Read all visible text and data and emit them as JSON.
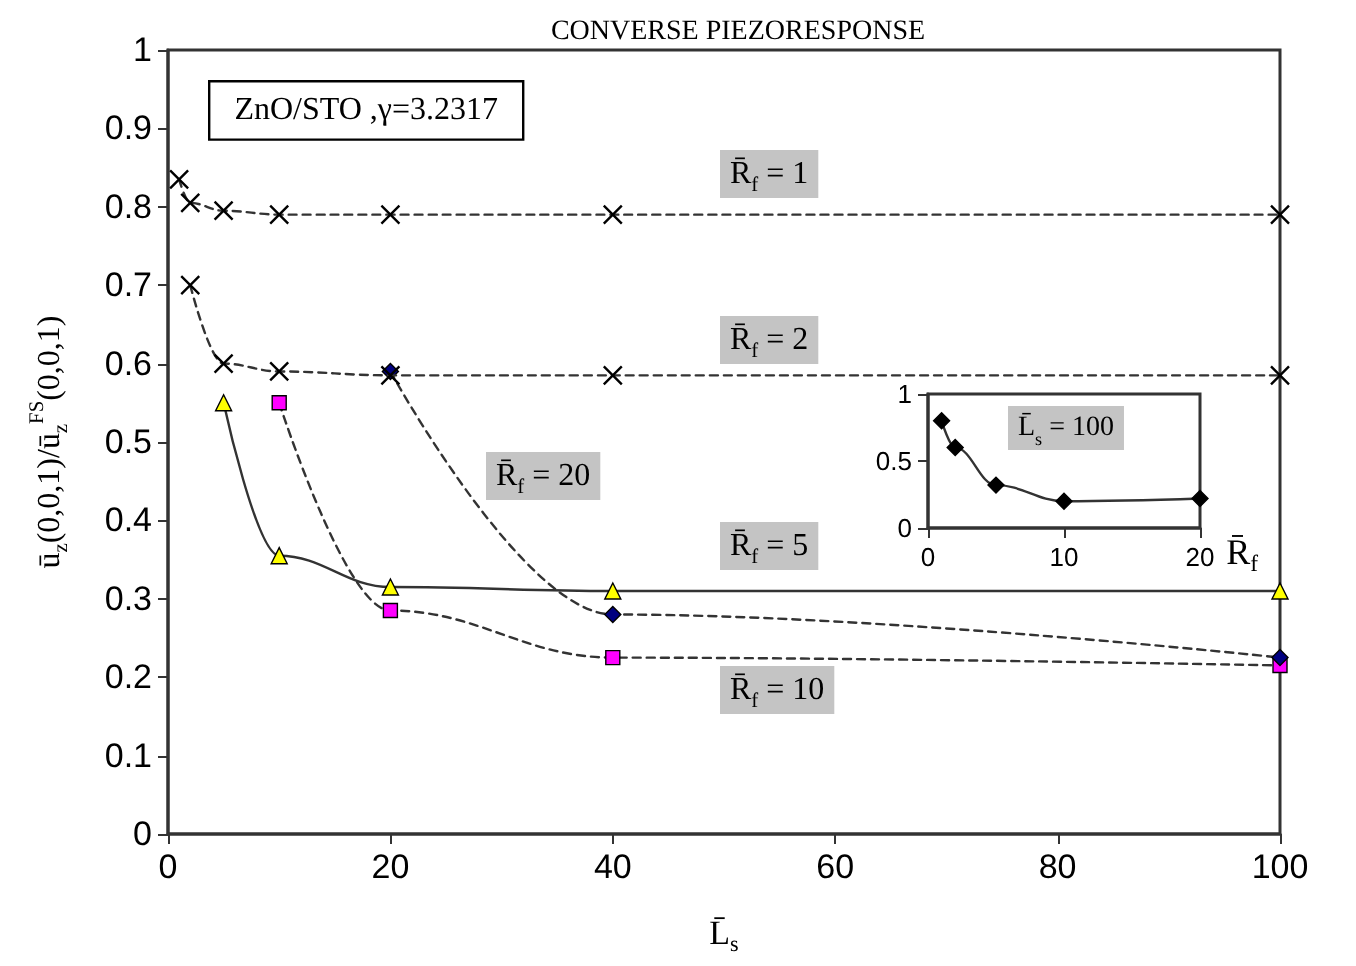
{
  "chart_data": [
    {
      "type": "line",
      "title": "CONVERSE PIEZORESPONSE",
      "xlabel": "L̄$_{s}$",
      "ylabel": "ū$_{z}$(0,0,1)/ū$_{z}$$^{FS}$(0,0,1)",
      "annotations": [
        "ZnO/STO ,γ=3.2317"
      ],
      "xlim": [
        0,
        100
      ],
      "xticks": [
        0,
        20,
        40,
        60,
        80,
        100
      ],
      "ylim": [
        0,
        1
      ],
      "yticks": [
        0,
        0.1,
        0.2,
        0.3,
        0.4,
        0.5,
        0.6,
        0.7,
        0.8,
        0.9,
        1
      ],
      "grid": false,
      "legend": false,
      "series": [
        {
          "name": "R̄$_{f}$ = 1",
          "color": "#000000",
          "marker": "cross",
          "line_style": "dashed",
          "x": [
            1,
            2,
            5,
            10,
            20,
            40,
            100
          ],
          "values": [
            0.835,
            0.805,
            0.795,
            0.79,
            0.79,
            0.79,
            0.79
          ]
        },
        {
          "name": "R̄$_{f}$ = 2",
          "color": "#000000",
          "marker": "cross",
          "line_style": "dashed",
          "x": [
            2,
            5,
            10,
            20,
            40,
            100
          ],
          "values": [
            0.7,
            0.6,
            0.59,
            0.585,
            0.585,
            0.585
          ]
        },
        {
          "name": "R̄$_{f}$ = 5",
          "color": "#ffff00",
          "marker": "triangle",
          "line_style": "solid",
          "x": [
            5,
            10,
            20,
            40,
            100
          ],
          "values": [
            0.55,
            0.355,
            0.315,
            0.31,
            0.31
          ]
        },
        {
          "name": "R̄$_{f}$ = 10",
          "color": "#ff00ff",
          "marker": "square",
          "line_style": "dashed",
          "x": [
            10,
            20,
            40,
            100
          ],
          "values": [
            0.55,
            0.285,
            0.225,
            0.215
          ]
        },
        {
          "name": "R̄$_{f}$ = 20",
          "color": "#000080",
          "marker": "diamond",
          "line_style": "dashed",
          "x": [
            20,
            40,
            100
          ],
          "values": [
            0.59,
            0.28,
            0.225
          ]
        }
      ]
    },
    {
      "type": "line",
      "xlabel": "R̄$_{f}$",
      "xlim": [
        0,
        20
      ],
      "xticks": [
        0,
        10,
        20
      ],
      "ylim": [
        0,
        1
      ],
      "yticks": [
        0,
        0.5,
        1
      ],
      "grid": false,
      "legend": false,
      "series": [
        {
          "name": "L̄$_{s}$ = 100",
          "color": "#000000",
          "marker": "diamond",
          "line_style": "solid",
          "x": [
            1,
            2,
            5,
            10,
            20
          ],
          "values": [
            0.8,
            0.6,
            0.32,
            0.2,
            0.22
          ]
        }
      ]
    }
  ]
}
